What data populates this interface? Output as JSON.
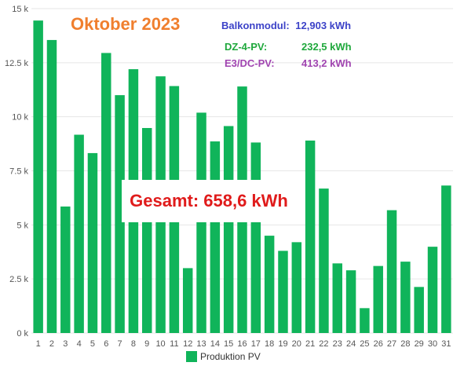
{
  "title_text": "Oktober 2023",
  "info": [
    {
      "label": "Balkonmodul:",
      "value": "12,903 kWh",
      "color": "#3d43c8"
    },
    {
      "label": "DZ-4-PV:",
      "value": "232,5 kWh",
      "color": "#1fa83c"
    },
    {
      "label": "E3/DC-PV:",
      "value": "413,2 kWh",
      "color": "#a044b0"
    }
  ],
  "total_text": "Gesamt: 658,6 kWh",
  "colors": {
    "bar": "#10b45a",
    "accent": "#f07f2e",
    "total": "#e01b1b",
    "grid": "#e6e6e6"
  },
  "chart_data": {
    "type": "bar",
    "categories": [
      "1",
      "2",
      "3",
      "4",
      "5",
      "6",
      "7",
      "8",
      "9",
      "10",
      "11",
      "12",
      "13",
      "14",
      "15",
      "16",
      "17",
      "18",
      "19",
      "20",
      "21",
      "22",
      "23",
      "24",
      "25",
      "26",
      "27",
      "28",
      "29",
      "30",
      "31"
    ],
    "series": [
      {
        "name": "Produktion PV",
        "values": [
          14450,
          13550,
          5850,
          9170,
          8320,
          12950,
          11000,
          12200,
          9480,
          11870,
          11420,
          3000,
          10190,
          8860,
          9570,
          11400,
          8810,
          4500,
          3800,
          4200,
          8900,
          6680,
          3220,
          2900,
          1150,
          3100,
          5680,
          3300,
          2130,
          3990,
          6820
        ]
      }
    ],
    "y_ticks": [
      0,
      2500,
      5000,
      7500,
      10000,
      12500,
      15000
    ],
    "y_tick_labels": [
      "0 k",
      "2.5 k",
      "5 k",
      "7.5 k",
      "10 k",
      "12.5 k",
      "15 k"
    ],
    "ylim": [
      0,
      15000
    ],
    "legend": {
      "label": "Produktion PV",
      "placement": "bottom-center"
    },
    "grid": true
  }
}
